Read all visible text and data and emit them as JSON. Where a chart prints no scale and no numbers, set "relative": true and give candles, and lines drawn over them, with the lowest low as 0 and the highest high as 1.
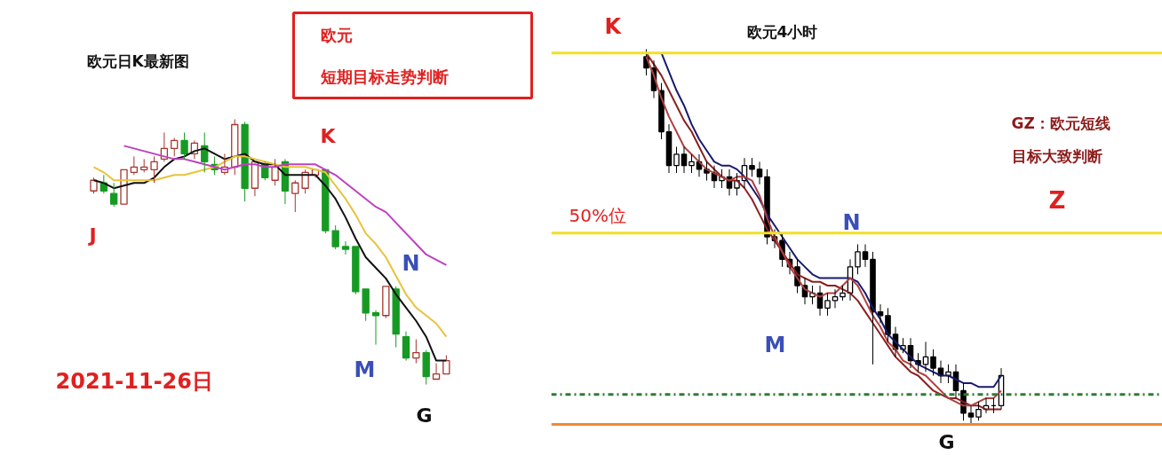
{
  "chart_data": [
    {
      "type": "candlestick",
      "title": "欧元日K最新图",
      "relative": true,
      "categories": [
        null,
        null,
        null,
        null,
        null,
        null,
        null,
        null,
        null,
        null,
        null,
        null,
        null,
        null,
        null,
        null,
        null,
        null,
        null,
        null,
        null,
        null,
        null,
        null,
        null,
        null,
        null,
        null,
        null,
        null,
        null,
        null,
        null,
        null,
        null,
        null
      ],
      "ohlc": [
        [
          0.73,
          0.78,
          0.72,
          0.77
        ],
        [
          0.76,
          0.79,
          0.72,
          0.73
        ],
        [
          0.72,
          0.76,
          0.67,
          0.68
        ],
        [
          0.68,
          0.81,
          0.68,
          0.81
        ],
        [
          0.8,
          0.86,
          0.79,
          0.82
        ],
        [
          0.81,
          0.85,
          0.8,
          0.82
        ],
        [
          0.81,
          0.86,
          0.76,
          0.84
        ],
        [
          0.85,
          0.95,
          0.84,
          0.89
        ],
        [
          0.89,
          0.93,
          0.86,
          0.92
        ],
        [
          0.92,
          0.95,
          0.85,
          0.87
        ],
        [
          0.87,
          0.92,
          0.85,
          0.91
        ],
        [
          0.9,
          0.95,
          0.8,
          0.84
        ],
        [
          0.83,
          0.86,
          0.79,
          0.81
        ],
        [
          0.8,
          0.87,
          0.79,
          0.82
        ],
        [
          0.82,
          1.0,
          0.79,
          0.98
        ],
        [
          0.98,
          0.99,
          0.69,
          0.74
        ],
        [
          0.74,
          0.84,
          0.71,
          0.84
        ],
        [
          0.83,
          0.84,
          0.77,
          0.78
        ],
        [
          0.77,
          0.85,
          0.75,
          0.82
        ],
        [
          0.84,
          0.85,
          0.68,
          0.73
        ],
        [
          0.72,
          0.77,
          0.65,
          0.76
        ],
        [
          0.74,
          0.81,
          0.72,
          0.8
        ],
        [
          0.79,
          0.81,
          0.78,
          0.81
        ],
        [
          0.81,
          0.81,
          0.57,
          0.58
        ],
        [
          0.58,
          0.6,
          0.51,
          0.52
        ],
        [
          0.52,
          0.54,
          0.49,
          0.51
        ],
        [
          0.52,
          0.52,
          0.34,
          0.35
        ],
        [
          0.36,
          0.36,
          0.24,
          0.27
        ],
        [
          0.27,
          0.28,
          0.15,
          0.26
        ],
        [
          0.26,
          0.37,
          0.25,
          0.37
        ],
        [
          0.36,
          0.37,
          0.14,
          0.19
        ],
        [
          0.18,
          0.2,
          0.09,
          0.1
        ],
        [
          0.1,
          0.17,
          0.08,
          0.12
        ],
        [
          0.12,
          0.13,
          0.0,
          0.03
        ],
        [
          0.02,
          0.08,
          0.02,
          0.04
        ],
        [
          0.04,
          0.11,
          0.04,
          0.09
        ]
      ],
      "colors": [
        "#a5352d",
        "#169a23",
        "#169a23",
        "#a5352d",
        "#a5352d",
        "#a5352d",
        "#a5352d",
        "#a5352d",
        "#a5352d",
        "#169a23",
        "#a5352d",
        "#169a23",
        "#169a23",
        "#a5352d",
        "#a5352d",
        "#169a23",
        "#a5352d",
        "#169a23",
        "#a5352d",
        "#169a23",
        "#a5352d",
        "#a5352d",
        "#a5352d",
        "#169a23",
        "#169a23",
        "#169a23",
        "#169a23",
        "#169a23",
        "#169a23",
        "#a5352d",
        "#169a23",
        "#169a23",
        "#a5352d",
        "#169a23",
        "#a5352d",
        "#a5352d"
      ],
      "series": [
        {
          "type": "line",
          "color": "#111111",
          "values": [
            0.77,
            0.76,
            0.74,
            0.75,
            0.76,
            0.76,
            0.78,
            0.82,
            0.85,
            0.86,
            0.88,
            0.89,
            0.87,
            0.85,
            0.86,
            0.87,
            0.84,
            0.83,
            0.83,
            0.79,
            0.79,
            0.79,
            0.79,
            0.75,
            0.7,
            0.63,
            0.55,
            0.48,
            0.44,
            0.4,
            0.34,
            0.29,
            0.24,
            0.18,
            0.09,
            0.09
          ]
        },
        {
          "type": "line",
          "color": "#e8c33a",
          "values": [
            0.82,
            0.8,
            0.77,
            0.77,
            0.77,
            0.77,
            0.77,
            0.78,
            0.79,
            0.79,
            0.8,
            0.81,
            0.82,
            0.84,
            0.86,
            0.86,
            0.85,
            0.84,
            0.83,
            0.82,
            0.82,
            0.82,
            0.81,
            0.8,
            0.75,
            0.7,
            0.64,
            0.57,
            0.53,
            0.48,
            0.41,
            0.34,
            0.29,
            0.26,
            0.23,
            0.18
          ]
        },
        {
          "type": "line",
          "color": "#c040c0",
          "values": [
            null,
            null,
            null,
            0.9,
            0.89,
            0.88,
            0.87,
            0.86,
            0.85,
            0.85,
            0.84,
            0.83,
            0.82,
            0.81,
            0.82,
            0.83,
            0.83,
            0.82,
            0.82,
            0.83,
            0.83,
            0.83,
            0.83,
            0.81,
            0.79,
            0.76,
            0.73,
            0.7,
            0.67,
            0.65,
            0.61,
            0.57,
            0.53,
            0.49,
            0.47,
            0.45
          ]
        }
      ],
      "annotations": [
        "欧元",
        "短期目标走势判断",
        "K",
        "J",
        "N",
        "M",
        "G",
        "2021-11-26日"
      ]
    },
    {
      "type": "candlestick",
      "title": "欧元4小时",
      "relative": true,
      "categories": [
        null,
        null,
        null,
        null,
        null,
        null,
        null,
        null,
        null,
        null,
        null,
        null,
        null,
        null,
        null,
        null,
        null,
        null,
        null,
        null,
        null,
        null,
        null,
        null,
        null,
        null,
        null,
        null,
        null,
        null,
        null,
        null,
        null,
        null,
        null,
        null,
        null,
        null,
        null,
        null,
        null,
        null,
        null,
        null,
        null,
        null,
        null,
        null
      ],
      "ohlc": [
        [
          0.98,
          1.0,
          0.93,
          0.95
        ],
        [
          0.95,
          0.97,
          0.87,
          0.89
        ],
        [
          0.89,
          0.91,
          0.76,
          0.78
        ],
        [
          0.78,
          0.8,
          0.67,
          0.69
        ],
        [
          0.69,
          0.74,
          0.67,
          0.72
        ],
        [
          0.72,
          0.74,
          0.67,
          0.69
        ],
        [
          0.69,
          0.72,
          0.67,
          0.7
        ],
        [
          0.7,
          0.72,
          0.66,
          0.68
        ],
        [
          0.68,
          0.7,
          0.65,
          0.67
        ],
        [
          0.67,
          0.69,
          0.63,
          0.65
        ],
        [
          0.65,
          0.68,
          0.63,
          0.66
        ],
        [
          0.66,
          0.68,
          0.61,
          0.63
        ],
        [
          0.63,
          0.67,
          0.61,
          0.65
        ],
        [
          0.65,
          0.71,
          0.63,
          0.69
        ],
        [
          0.69,
          0.71,
          0.66,
          0.68
        ],
        [
          0.68,
          0.7,
          0.64,
          0.66
        ],
        [
          0.66,
          0.68,
          0.48,
          0.5
        ],
        [
          0.5,
          0.52,
          0.47,
          0.49
        ],
        [
          0.49,
          0.51,
          0.42,
          0.44
        ],
        [
          0.44,
          0.46,
          0.4,
          0.42
        ],
        [
          0.42,
          0.44,
          0.35,
          0.37
        ],
        [
          0.37,
          0.39,
          0.32,
          0.34
        ],
        [
          0.34,
          0.37,
          0.32,
          0.35
        ],
        [
          0.35,
          0.37,
          0.29,
          0.31
        ],
        [
          0.31,
          0.35,
          0.29,
          0.33
        ],
        [
          0.33,
          0.36,
          0.31,
          0.34
        ],
        [
          0.34,
          0.37,
          0.33,
          0.35
        ],
        [
          0.35,
          0.44,
          0.33,
          0.42
        ],
        [
          0.42,
          0.48,
          0.4,
          0.46
        ],
        [
          0.46,
          0.48,
          0.42,
          0.44
        ],
        [
          0.44,
          0.46,
          0.16,
          0.3
        ],
        [
          0.3,
          0.32,
          0.27,
          0.29
        ],
        [
          0.29,
          0.31,
          0.22,
          0.24
        ],
        [
          0.24,
          0.26,
          0.18,
          0.2
        ],
        [
          0.2,
          0.23,
          0.19,
          0.21
        ],
        [
          0.21,
          0.23,
          0.15,
          0.17
        ],
        [
          0.17,
          0.19,
          0.14,
          0.16
        ],
        [
          0.16,
          0.22,
          0.14,
          0.18
        ],
        [
          0.18,
          0.2,
          0.13,
          0.15
        ],
        [
          0.15,
          0.17,
          0.11,
          0.13
        ],
        [
          0.13,
          0.16,
          0.11,
          0.14
        ],
        [
          0.14,
          0.16,
          0.07,
          0.09
        ],
        [
          0.09,
          0.11,
          0.01,
          0.03
        ],
        [
          0.03,
          0.05,
          0.0,
          0.02
        ],
        [
          0.02,
          0.06,
          0.01,
          0.04
        ],
        [
          0.04,
          0.07,
          0.03,
          0.05
        ],
        [
          0.05,
          0.07,
          0.03,
          0.05
        ],
        [
          0.05,
          0.15,
          0.04,
          0.13
        ]
      ],
      "colors": [
        "#000000",
        "#000000",
        "#000000",
        "#000000",
        "#000000",
        "#000000",
        "#000000",
        "#000000",
        "#000000",
        "#000000",
        "#000000",
        "#000000",
        "#000000",
        "#000000",
        "#000000",
        "#000000",
        "#000000",
        "#000000",
        "#000000",
        "#000000",
        "#000000",
        "#000000",
        "#000000",
        "#000000",
        "#000000",
        "#000000",
        "#000000",
        "#000000",
        "#000000",
        "#000000",
        "#000000",
        "#000000",
        "#000000",
        "#000000",
        "#000000",
        "#000000",
        "#000000",
        "#000000",
        "#000000",
        "#000000",
        "#000000",
        "#000000",
        "#000000",
        "#000000",
        "#000000",
        "#000000",
        "#000000",
        "#000000"
      ],
      "series": [
        {
          "type": "line",
          "color": "#1a1a6e",
          "values": [
            null,
            null,
            0.99,
            0.94,
            0.89,
            0.85,
            0.8,
            0.76,
            0.73,
            0.7,
            0.69,
            0.69,
            0.68,
            0.66,
            0.63,
            0.6,
            0.56,
            0.53,
            0.5,
            0.47,
            0.44,
            0.42,
            0.4,
            0.39,
            0.39,
            0.39,
            0.39,
            0.39,
            0.38,
            0.35,
            0.31,
            0.28,
            0.24,
            0.22,
            0.2,
            0.18,
            0.16,
            0.15,
            0.14,
            0.13,
            0.13,
            0.12,
            0.11,
            0.11,
            0.1,
            0.1,
            0.1,
            0.13
          ]
        },
        {
          "type": "line",
          "color": "#8b2020",
          "values": [
            0.99,
            0.96,
            0.93,
            0.89,
            0.85,
            0.81,
            0.78,
            0.74,
            0.7,
            0.68,
            0.66,
            0.65,
            0.65,
            0.63,
            0.6,
            0.56,
            0.52,
            0.49,
            0.46,
            0.43,
            0.4,
            0.39,
            0.38,
            0.38,
            0.37,
            0.37,
            0.36,
            0.35,
            0.33,
            0.3,
            0.27,
            0.24,
            0.21,
            0.18,
            0.16,
            0.14,
            0.13,
            0.11,
            0.09,
            0.08,
            0.07,
            0.07,
            0.06,
            0.05,
            0.05,
            0.04,
            0.04,
            0.04
          ]
        },
        {
          "type": "line",
          "color": "#b04040",
          "values": [
            0.98,
            0.93,
            0.87,
            0.82,
            0.78,
            0.74,
            0.72,
            0.7,
            0.68,
            0.67,
            0.66,
            0.65,
            0.66,
            0.66,
            0.65,
            0.61,
            0.55,
            0.5,
            0.46,
            0.42,
            0.39,
            0.36,
            0.35,
            0.34,
            0.35,
            0.35,
            0.37,
            0.39,
            0.37,
            0.33,
            0.29,
            0.26,
            0.22,
            0.2,
            0.17,
            0.16,
            0.14,
            0.13,
            0.11,
            0.09,
            0.07,
            0.06,
            0.05,
            0.05,
            0.06,
            0.07,
            0.07,
            0.09
          ]
        }
      ],
      "ref_lines": [
        {
          "axis": "y",
          "value": 0.99,
          "color": "#f0e020"
        },
        {
          "axis": "y",
          "value": 0.51,
          "color": "#f0e020",
          "label": "50%位"
        },
        {
          "axis": "y",
          "value": 0.08,
          "color": "#2e7d32",
          "line_style": "dashdot"
        },
        {
          "axis": "y",
          "value": 0.0,
          "color": "#f08a30"
        }
      ],
      "annotations": [
        "K",
        "N",
        "M",
        "G",
        "Z",
        "GZ：欧元短线",
        "目标大致判断"
      ]
    }
  ]
}
